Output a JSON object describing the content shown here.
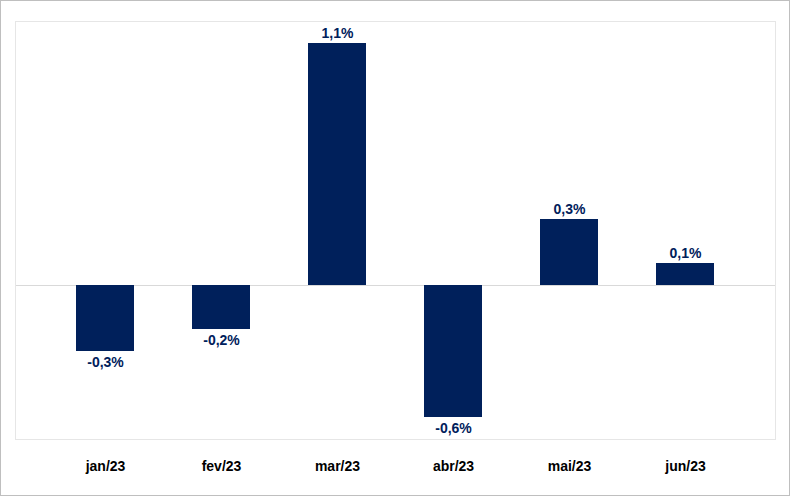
{
  "chart_data": {
    "type": "bar",
    "categories": [
      "jan/23",
      "fev/23",
      "mar/23",
      "abr/23",
      "mai/23",
      "jun/23"
    ],
    "values": [
      -0.3,
      -0.2,
      1.1,
      -0.6,
      0.3,
      0.1
    ],
    "value_labels": [
      "-0,3%",
      "-0,2%",
      "1,1%",
      "-0,6%",
      "0,3%",
      "0,1%"
    ],
    "color": "#00205b",
    "ylim": [
      -0.7,
      1.2
    ],
    "grid": false,
    "data_labels": true,
    "tick_labels": "x"
  }
}
